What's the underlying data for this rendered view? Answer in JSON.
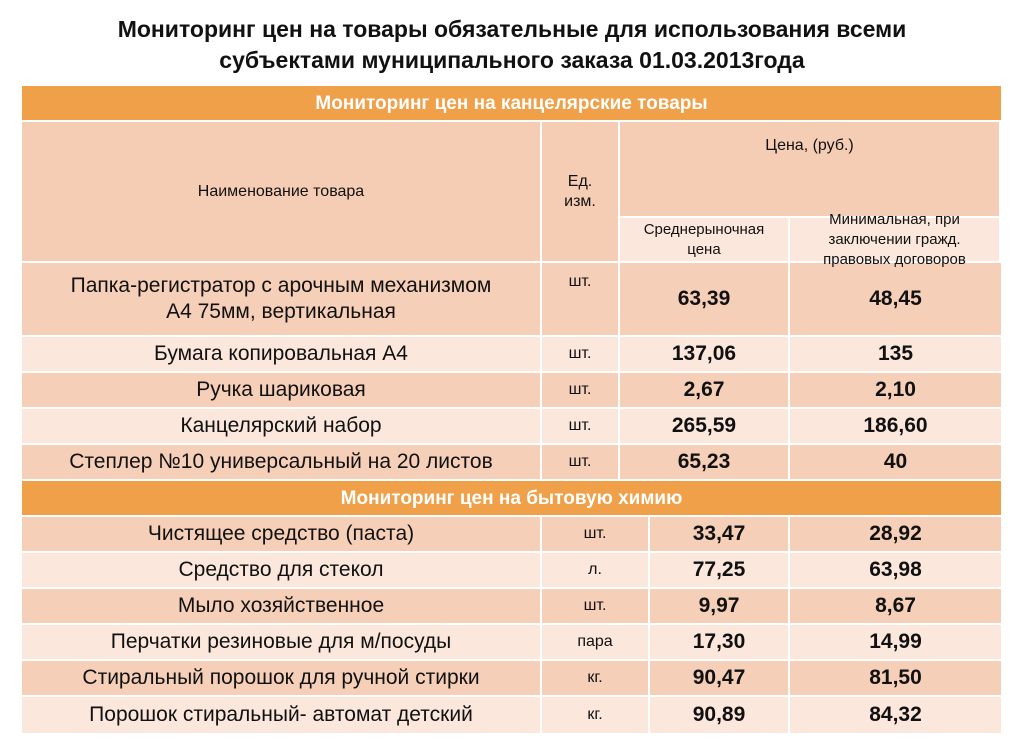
{
  "title": {
    "line1": "Мониторинг цен на товары обязательные для использования всеми",
    "line2": "субъектами муниципального заказа 01.03.2013года"
  },
  "section1": {
    "title": "Мониторинг цен на канцелярские товары",
    "header": {
      "name": "Наименование товара",
      "unit_line1": "Ед.",
      "unit_line2": "изм.",
      "price": "Цена, (руб.)",
      "avg_line1": "Среднерыночная",
      "avg_line2": "цена",
      "min_line1": "Минимальная, при",
      "min_line2": "заключении гражд.",
      "min_line3": "правовых договоров"
    },
    "rows": [
      {
        "name_line1": "Папка-регистратор с арочным механизмом",
        "name_line2": "А4 75мм, вертикальная",
        "unit": "шт.",
        "avg": "63,39",
        "min": "48,45"
      },
      {
        "name": "Бумага копировальная А4",
        "unit": "шт.",
        "avg": "137,06",
        "min": "135"
      },
      {
        "name": "Ручка шариковая",
        "unit": "шт.",
        "avg": "2,67",
        "min": "2,10"
      },
      {
        "name": "Канцелярский набор",
        "unit": "шт.",
        "avg": "265,59",
        "min": "186,60"
      },
      {
        "name": "Степлер №10 универсальный на 20 листов",
        "unit": "шт.",
        "avg": "65,23",
        "min": "40"
      }
    ]
  },
  "section2": {
    "title": "Мониторинг цен на бытовую химию",
    "rows": [
      {
        "name": "Чистящее средство (паста)",
        "unit": "шт.",
        "avg": "33,47",
        "min": "28,92"
      },
      {
        "name": "Средство для стекол",
        "unit": "л.",
        "avg": "77,25",
        "min": "63,98"
      },
      {
        "name": "Мыло хозяйственное",
        "unit": "шт.",
        "avg": "9,97",
        "min": "8,67"
      },
      {
        "name": "Перчатки резиновые для м/посуды",
        "unit": "пара",
        "avg": "17,30",
        "min": "14,99"
      },
      {
        "name": "Стиральный порошок для ручной стирки",
        "unit": "кг.",
        "avg": "90,47",
        "min": "81,50"
      },
      {
        "name": "Порошок стиральный- автомат детский",
        "unit": "кг.",
        "avg": "90,89",
        "min": "84,32"
      }
    ]
  }
}
